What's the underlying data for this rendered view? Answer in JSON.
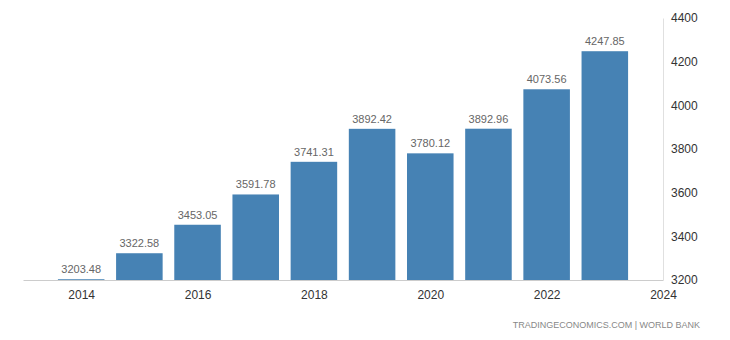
{
  "chart_data": {
    "type": "bar",
    "x": [
      2014,
      2015,
      2016,
      2017,
      2018,
      2019,
      2020,
      2021,
      2022,
      2023
    ],
    "values": [
      3203.48,
      3322.58,
      3453.05,
      3591.78,
      3741.31,
      3892.42,
      3780.12,
      3892.96,
      4073.56,
      4247.85
    ],
    "color": "#4682b4",
    "xlim": [
      2013,
      2024
    ],
    "xticks": [
      2014,
      2016,
      2018,
      2020,
      2022,
      2024
    ],
    "ylim": [
      3200,
      4400
    ],
    "yticks": [
      3200,
      3400,
      3600,
      3800,
      4000,
      4200,
      4400
    ],
    "grid": false,
    "data_labels": true,
    "source": "TRADINGECONOMICS.COM | WORLD BANK"
  }
}
